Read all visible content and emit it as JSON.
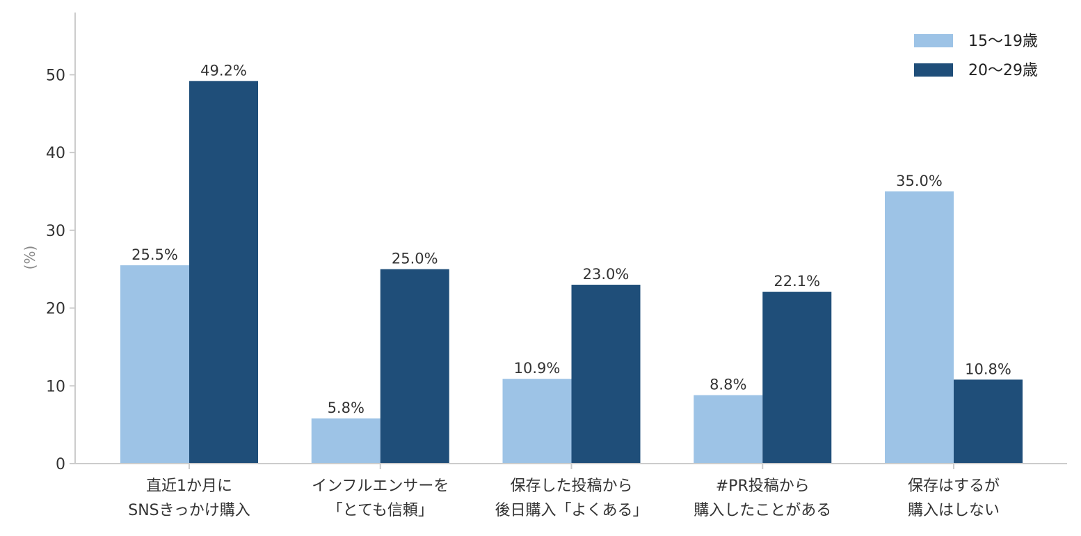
{
  "chart_data": {
    "type": "bar",
    "categories": [
      [
        "直近1か月に",
        "SNSきっかけ購入"
      ],
      [
        "インフルエンサーを",
        "「とても信頼」"
      ],
      [
        "保存した投稿から",
        "後日購入「よくある」"
      ],
      [
        "#PR投稿から",
        "購入したことがある"
      ],
      [
        "保存はするが",
        "購入はしない"
      ]
    ],
    "series": [
      {
        "name": "15〜19歳",
        "color": "#9dc3e6",
        "values": [
          25.5,
          5.8,
          10.9,
          8.8,
          35.0
        ],
        "labels": [
          "25.5%",
          "5.8%",
          "10.9%",
          "8.8%",
          "35.0%"
        ]
      },
      {
        "name": "20〜29歳",
        "color": "#1f4e79",
        "values": [
          49.2,
          25.0,
          23.0,
          22.1,
          10.8
        ],
        "labels": [
          "49.2%",
          "25.0%",
          "23.0%",
          "22.1%",
          "10.8%"
        ]
      }
    ],
    "ylabel": "(%)",
    "ylim": [
      0,
      58
    ],
    "yticks": [
      0,
      10,
      20,
      30,
      40,
      50
    ],
    "legend_position": "top-right",
    "grid": false
  }
}
